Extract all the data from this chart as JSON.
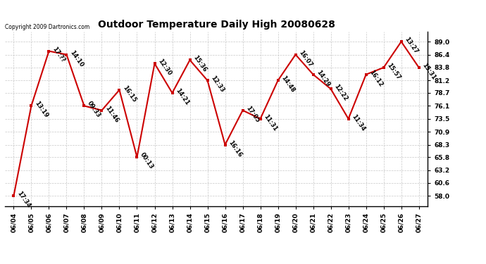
{
  "title": "Outdoor Temperature Daily High 20080628",
  "copyright": "Copyright 2009 Dartronics.com",
  "background_color": "#ffffff",
  "plot_bg_color": "#ffffff",
  "grid_color": "#c8c8c8",
  "line_color": "#cc0000",
  "marker_color": "#cc0000",
  "text_color": "#000000",
  "dates": [
    "06/04",
    "06/05",
    "06/06",
    "06/07",
    "06/08",
    "06/09",
    "06/10",
    "06/11",
    "06/12",
    "06/13",
    "06/14",
    "06/15",
    "06/16",
    "06/17",
    "06/18",
    "06/19",
    "06/20",
    "06/21",
    "06/22",
    "06/23",
    "06/24",
    "06/25",
    "06/26",
    "06/27"
  ],
  "values": [
    58.0,
    76.1,
    87.1,
    86.4,
    76.1,
    75.2,
    79.3,
    65.8,
    84.6,
    78.7,
    85.3,
    81.2,
    68.3,
    75.2,
    73.5,
    81.2,
    86.4,
    82.4,
    79.5,
    73.5,
    82.4,
    83.8,
    89.0,
    83.8
  ],
  "labels": [
    "17:34",
    "13:19",
    "17:??",
    "14:10",
    "09:33",
    "11:46",
    "16:15",
    "00:13",
    "12:30",
    "14:21",
    "15:36",
    "12:33",
    "16:16",
    "17:05",
    "11:31",
    "14:48",
    "16:07",
    "14:29",
    "12:22",
    "11:34",
    "16:12",
    "15:57",
    "13:27",
    "15:31"
  ],
  "ytick_values": [
    58.0,
    60.6,
    63.2,
    65.8,
    68.3,
    70.9,
    73.5,
    76.1,
    78.7,
    81.2,
    83.8,
    86.4,
    89.0
  ],
  "ylim_min": 56.0,
  "ylim_max": 91.0,
  "title_fontsize": 10,
  "tick_fontsize": 6.5,
  "annotation_fontsize": 6,
  "line_width": 1.5,
  "marker_size": 3.0,
  "annotation_rotation": -55
}
